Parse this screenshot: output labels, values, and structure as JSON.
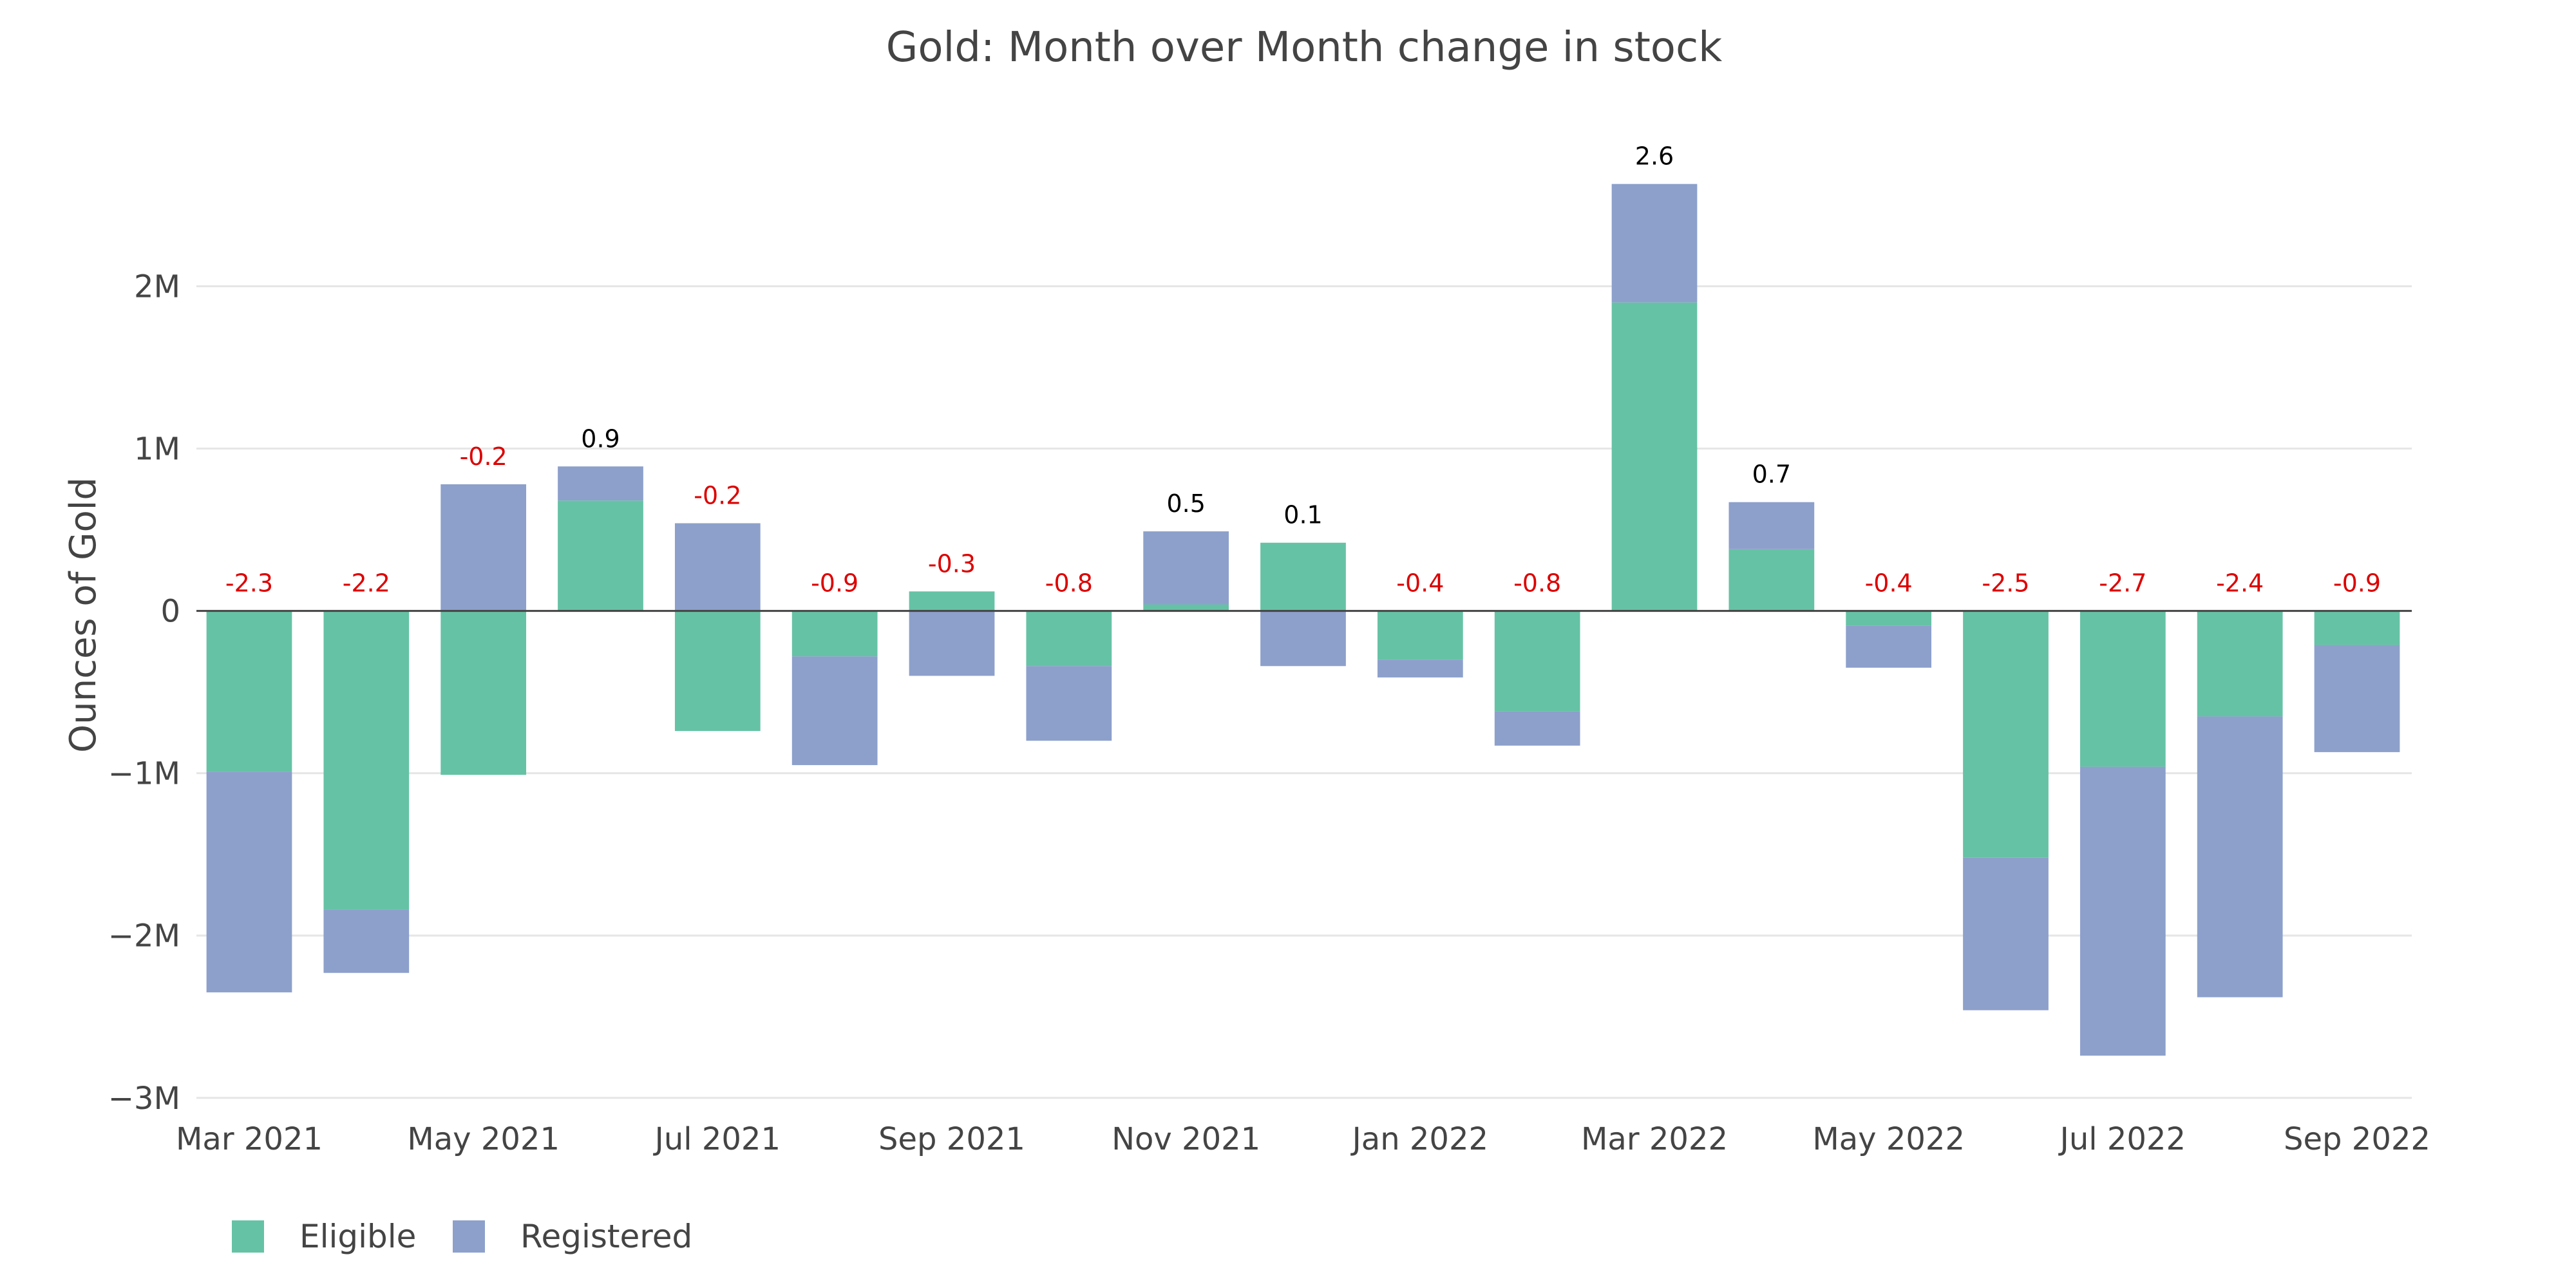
{
  "chart_data": {
    "type": "bar",
    "stacking": "relative",
    "title": "Gold: Month over Month change in stock",
    "xlabel": "",
    "ylabel": "Ounces of Gold",
    "ylim": [
      -3100000,
      2950000
    ],
    "yticks": [
      {
        "value": 2000000,
        "label": "2M"
      },
      {
        "value": 1000000,
        "label": "1M"
      },
      {
        "value": 0,
        "label": "0"
      },
      {
        "value": -1000000,
        "label": "−1M"
      },
      {
        "value": -2000000,
        "label": "−2M"
      },
      {
        "value": -3000000,
        "label": "−3M"
      }
    ],
    "categories": [
      "Mar 2021",
      "Apr 2021",
      "May 2021",
      "Jun 2021",
      "Jul 2021",
      "Aug 2021",
      "Sep 2021",
      "Oct 2021",
      "Nov 2021",
      "Dec 2021",
      "Jan 2022",
      "Feb 2022",
      "Mar 2022",
      "Apr 2022",
      "May 2022",
      "Jun 2022",
      "Jul 2022",
      "Aug 2022",
      "Sep 2022"
    ],
    "xtick_labels": [
      {
        "index": 0,
        "label": "Mar 2021"
      },
      {
        "index": 2,
        "label": "May 2021"
      },
      {
        "index": 4,
        "label": "Jul 2021"
      },
      {
        "index": 6,
        "label": "Sep 2021"
      },
      {
        "index": 8,
        "label": "Nov 2021"
      },
      {
        "index": 10,
        "label": "Jan 2022"
      },
      {
        "index": 12,
        "label": "Mar 2022"
      },
      {
        "index": 14,
        "label": "May 2022"
      },
      {
        "index": 16,
        "label": "Jul 2022"
      },
      {
        "index": 18,
        "label": "Sep 2022"
      }
    ],
    "series": [
      {
        "name": "Eligible",
        "color": "#66c2a5",
        "values": [
          -990000,
          -1840000,
          -1010000,
          680000,
          -740000,
          -280000,
          120000,
          -340000,
          40000,
          420000,
          -300000,
          -620000,
          1900000,
          380000,
          -90000,
          -1520000,
          -960000,
          -650000,
          -210000
        ]
      },
      {
        "name": "Registered",
        "color": "#8da0cb",
        "values": [
          -1360000,
          -390000,
          780000,
          210000,
          540000,
          -670000,
          -400000,
          -460000,
          450000,
          -340000,
          -110000,
          -210000,
          730000,
          290000,
          -260000,
          -940000,
          -1780000,
          -1730000,
          -660000
        ]
      }
    ],
    "totals": [
      "-2.3",
      "-2.2",
      "-0.2",
      "0.9",
      "-0.2",
      "-0.9",
      "-0.3",
      "-0.8",
      "0.5",
      "0.1",
      "-0.4",
      "-0.8",
      "2.6",
      "0.7",
      "-0.4",
      "-2.5",
      "-2.7",
      "-2.4",
      "-0.9"
    ],
    "total_colors": {
      "negative": "#dd0000",
      "positive": "#000000"
    },
    "grid": true,
    "legend_position": "bottom-left"
  }
}
